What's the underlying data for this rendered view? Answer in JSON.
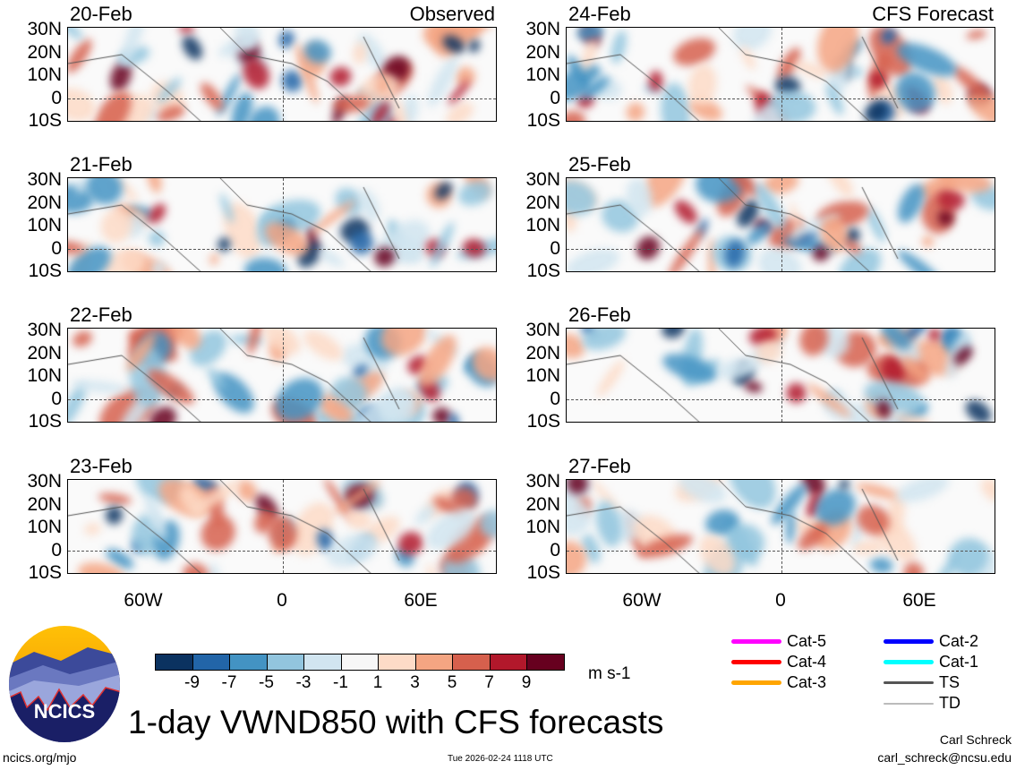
{
  "panels": [
    {
      "date": "20-Feb",
      "label": "Observed"
    },
    {
      "date": "24-Feb",
      "label": "CFS Forecast"
    },
    {
      "date": "21-Feb",
      "label": ""
    },
    {
      "date": "25-Feb",
      "label": ""
    },
    {
      "date": "22-Feb",
      "label": ""
    },
    {
      "date": "26-Feb",
      "label": ""
    },
    {
      "date": "23-Feb",
      "label": ""
    },
    {
      "date": "27-Feb",
      "label": ""
    }
  ],
  "lat_ticks": [
    "30N",
    "20N",
    "10N",
    "0",
    "10S"
  ],
  "lon_ticks": [
    "60W",
    "0",
    "60E"
  ],
  "colorbar": {
    "levels": [
      "-9",
      "-7",
      "-5",
      "-3",
      "-1",
      "1",
      "3",
      "5",
      "7",
      "9"
    ],
    "colors": [
      "#0b3260",
      "#2265a8",
      "#4393c3",
      "#92c5de",
      "#d1e5f0",
      "#f7f7f7",
      "#fddbc7",
      "#f4a582",
      "#d6604d",
      "#b2182b",
      "#67001f"
    ],
    "units": "m s-1"
  },
  "legend": [
    {
      "label": "Cat-5",
      "color": "#ff00ff"
    },
    {
      "label": "Cat-4",
      "color": "#ff0000"
    },
    {
      "label": "Cat-3",
      "color": "#ffa500"
    },
    {
      "label": "Cat-2",
      "color": "#0000ff"
    },
    {
      "label": "Cat-1",
      "color": "#00ffff"
    },
    {
      "label": "TS",
      "color": "#555555"
    },
    {
      "label": "TD",
      "color": "#bbbbbb"
    }
  ],
  "logo_text": "NCICS",
  "title": "1-day VWND850 with CFS forecasts",
  "footer": {
    "url": "ncics.org/mjo",
    "timestamp": "Tue 2026-02-24 1118 UTC",
    "author": "Carl Schreck",
    "email": "carl_schreck@ncsu.edu"
  }
}
